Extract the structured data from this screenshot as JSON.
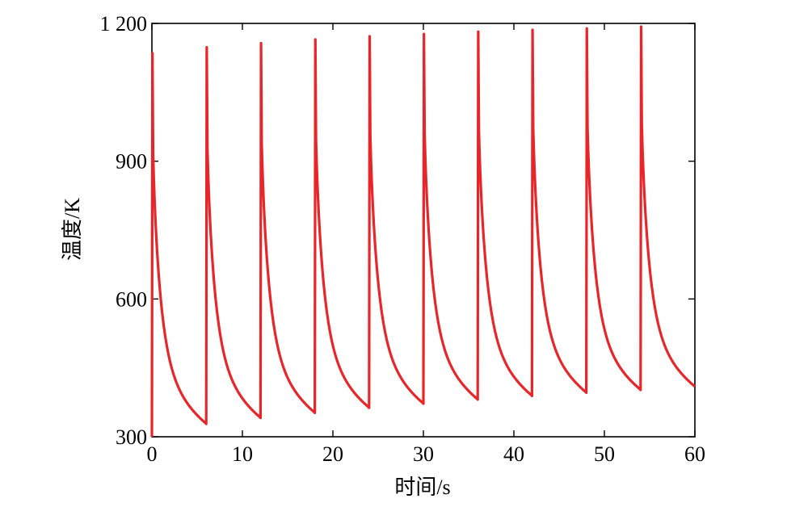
{
  "chart_data": {
    "type": "line",
    "xlabel": "时间/s",
    "ylabel": "温度/K",
    "xlim": [
      0,
      60
    ],
    "ylim": [
      300,
      1200
    ],
    "xticks": [
      0,
      10,
      20,
      30,
      40,
      50,
      60
    ],
    "xtick_labels": [
      "0",
      "10",
      "20",
      "30",
      "40",
      "50",
      "60"
    ],
    "yticks": [
      300,
      600,
      900,
      1200
    ],
    "ytick_labels": [
      "300",
      "600",
      "900",
      "1 200"
    ],
    "grid": false,
    "series_color": "#e8262a",
    "cycle_period_s": 6,
    "cycles": [
      {
        "start": 0,
        "peak": 1135,
        "end_temp": 328
      },
      {
        "start": 6,
        "peak": 1148,
        "end_temp": 341
      },
      {
        "start": 12,
        "peak": 1157,
        "end_temp": 352
      },
      {
        "start": 18,
        "peak": 1165,
        "end_temp": 363
      },
      {
        "start": 24,
        "peak": 1172,
        "end_temp": 372
      },
      {
        "start": 30,
        "peak": 1177,
        "end_temp": 381
      },
      {
        "start": 36,
        "peak": 1182,
        "end_temp": 389
      },
      {
        "start": 42,
        "peak": 1186,
        "end_temp": 396
      },
      {
        "start": 48,
        "peak": 1189,
        "end_temp": 402
      },
      {
        "start": 54,
        "peak": 1193,
        "end_temp": 409
      }
    ],
    "initial_temp": 300
  }
}
